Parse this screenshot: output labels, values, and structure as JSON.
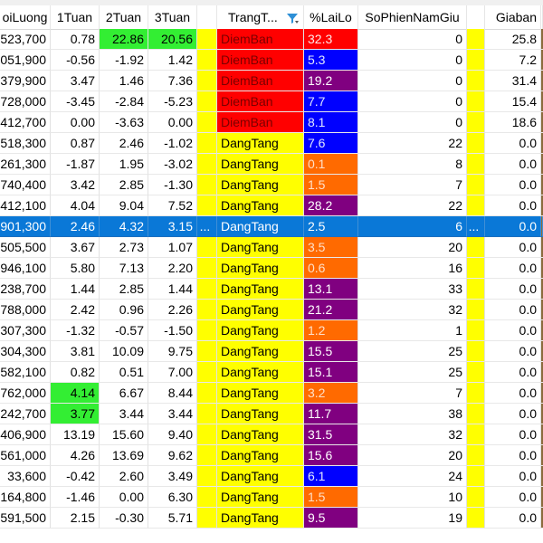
{
  "colors": {
    "green": "#33ee33",
    "yellow": "#ffff00",
    "red": "#ff0000",
    "blue": "#0000ff",
    "orange": "#ff6a00",
    "purple": "#800080",
    "selected": "#0a78d7",
    "brown_edge": "#8b6b3d"
  },
  "columns": [
    {
      "key": "luong",
      "label": "oiLuong"
    },
    {
      "key": "t1",
      "label": "1Tuan"
    },
    {
      "key": "t2",
      "label": "2Tuan"
    },
    {
      "key": "t3",
      "label": "3Tuan"
    },
    {
      "key": "sp1",
      "label": ""
    },
    {
      "key": "trang",
      "label": "TrangT..."
    },
    {
      "key": "lailo",
      "label": "%LaiLo"
    },
    {
      "key": "sophien",
      "label": "SoPhienNamGiu"
    },
    {
      "key": "sp2",
      "label": ""
    },
    {
      "key": "giaban",
      "label": "Giaban"
    }
  ],
  "filter_icon": "filter-sort-icon",
  "selected_row": 9,
  "rows": [
    {
      "luong": "523,700",
      "t1": "0.78",
      "t2": "22.86",
      "t3": "20.56",
      "trang": "DiemBan",
      "lailo": "32.3",
      "sophien": "0",
      "giaban": "25.8",
      "hl": {
        "t2": "green",
        "t3": "green"
      },
      "tc": "red",
      "lc": "red"
    },
    {
      "luong": "051,900",
      "t1": "-0.56",
      "t2": "-1.92",
      "t3": "1.42",
      "trang": "DiemBan",
      "lailo": "5.3",
      "sophien": "0",
      "giaban": "7.2",
      "hl": {},
      "tc": "red",
      "lc": "blue"
    },
    {
      "luong": "379,900",
      "t1": "3.47",
      "t2": "1.46",
      "t3": "7.36",
      "trang": "DiemBan",
      "lailo": "19.2",
      "sophien": "0",
      "giaban": "31.4",
      "hl": {},
      "tc": "red",
      "lc": "purple"
    },
    {
      "luong": "728,000",
      "t1": "-3.45",
      "t2": "-2.84",
      "t3": "-5.23",
      "trang": "DiemBan",
      "lailo": "7.7",
      "sophien": "0",
      "giaban": "15.4",
      "hl": {},
      "tc": "red",
      "lc": "blue"
    },
    {
      "luong": "412,700",
      "t1": "0.00",
      "t2": "-3.63",
      "t3": "0.00",
      "trang": "DiemBan",
      "lailo": "8.1",
      "sophien": "0",
      "giaban": "18.6",
      "hl": {},
      "tc": "red",
      "lc": "blue"
    },
    {
      "luong": "518,300",
      "t1": "0.87",
      "t2": "2.46",
      "t3": "-1.02",
      "trang": "DangTang",
      "lailo": "7.6",
      "sophien": "22",
      "giaban": "0.0",
      "hl": {},
      "tc": "yellow",
      "lc": "blue"
    },
    {
      "luong": "261,300",
      "t1": "-1.87",
      "t2": "1.95",
      "t3": "-3.02",
      "trang": "DangTang",
      "lailo": "0.1",
      "sophien": "8",
      "giaban": "0.0",
      "hl": {},
      "tc": "yellow",
      "lc": "orange"
    },
    {
      "luong": "740,400",
      "t1": "3.42",
      "t2": "2.85",
      "t3": "-1.30",
      "trang": "DangTang",
      "lailo": "1.5",
      "sophien": "7",
      "giaban": "0.0",
      "hl": {},
      "tc": "yellow",
      "lc": "orange"
    },
    {
      "luong": "412,100",
      "t1": "4.04",
      "t2": "9.04",
      "t3": "7.52",
      "trang": "DangTang",
      "lailo": "28.2",
      "sophien": "22",
      "giaban": "0.0",
      "hl": {},
      "tc": "yellow",
      "lc": "purple"
    },
    {
      "luong": "901,300",
      "t1": "2.46",
      "t2": "4.32",
      "t3": "3.15",
      "sp1": "...",
      "trang": "DangTang",
      "lailo": "2.5",
      "sophien": "6",
      "sp2": "...",
      "giaban": "0.0",
      "hl": {},
      "tc": "selected",
      "lc": "selected"
    },
    {
      "luong": "505,500",
      "t1": "3.67",
      "t2": "2.73",
      "t3": "1.07",
      "trang": "DangTang",
      "lailo": "3.5",
      "sophien": "20",
      "giaban": "0.0",
      "hl": {},
      "tc": "yellow",
      "lc": "orange"
    },
    {
      "luong": "946,100",
      "t1": "5.80",
      "t2": "7.13",
      "t3": "2.20",
      "trang": "DangTang",
      "lailo": "0.6",
      "sophien": "16",
      "giaban": "0.0",
      "hl": {},
      "tc": "yellow",
      "lc": "orange"
    },
    {
      "luong": "238,700",
      "t1": "1.44",
      "t2": "2.85",
      "t3": "1.44",
      "trang": "DangTang",
      "lailo": "13.1",
      "sophien": "33",
      "giaban": "0.0",
      "hl": {},
      "tc": "yellow",
      "lc": "purple"
    },
    {
      "luong": "788,000",
      "t1": "2.42",
      "t2": "0.96",
      "t3": "2.26",
      "trang": "DangTang",
      "lailo": "21.2",
      "sophien": "32",
      "giaban": "0.0",
      "hl": {},
      "tc": "yellow",
      "lc": "purple"
    },
    {
      "luong": "307,300",
      "t1": "-1.32",
      "t2": "-0.57",
      "t3": "-1.50",
      "trang": "DangTang",
      "lailo": "1.2",
      "sophien": "1",
      "giaban": "0.0",
      "hl": {},
      "tc": "yellow",
      "lc": "orange"
    },
    {
      "luong": "304,300",
      "t1": "3.81",
      "t2": "10.09",
      "t3": "9.75",
      "trang": "DangTang",
      "lailo": "15.5",
      "sophien": "25",
      "giaban": "0.0",
      "hl": {},
      "tc": "yellow",
      "lc": "purple"
    },
    {
      "luong": "582,100",
      "t1": "0.82",
      "t2": "0.51",
      "t3": "7.00",
      "trang": "DangTang",
      "lailo": "15.1",
      "sophien": "25",
      "giaban": "0.0",
      "hl": {},
      "tc": "yellow",
      "lc": "purple"
    },
    {
      "luong": "762,000",
      "t1": "4.14",
      "t2": "6.67",
      "t3": "8.44",
      "trang": "DangTang",
      "lailo": "3.2",
      "sophien": "7",
      "giaban": "0.0",
      "hl": {
        "t1": "green"
      },
      "tc": "yellow",
      "lc": "orange"
    },
    {
      "luong": "242,700",
      "t1": "3.77",
      "t2": "3.44",
      "t3": "3.44",
      "trang": "DangTang",
      "lailo": "11.7",
      "sophien": "38",
      "giaban": "0.0",
      "hl": {
        "t1": "green"
      },
      "tc": "yellow",
      "lc": "purple"
    },
    {
      "luong": "406,900",
      "t1": "13.19",
      "t2": "15.60",
      "t3": "9.40",
      "trang": "DangTang",
      "lailo": "31.5",
      "sophien": "32",
      "giaban": "0.0",
      "hl": {},
      "tc": "yellow",
      "lc": "purple"
    },
    {
      "luong": "561,000",
      "t1": "4.26",
      "t2": "13.69",
      "t3": "9.62",
      "trang": "DangTang",
      "lailo": "15.6",
      "sophien": "20",
      "giaban": "0.0",
      "hl": {},
      "tc": "yellow",
      "lc": "purple"
    },
    {
      "luong": "33,600",
      "t1": "-0.42",
      "t2": "2.60",
      "t3": "3.49",
      "trang": "DangTang",
      "lailo": "6.1",
      "sophien": "24",
      "giaban": "0.0",
      "hl": {},
      "tc": "yellow",
      "lc": "blue"
    },
    {
      "luong": "164,800",
      "t1": "-1.46",
      "t2": "0.00",
      "t3": "6.30",
      "trang": "DangTang",
      "lailo": "1.5",
      "sophien": "10",
      "giaban": "0.0",
      "hl": {},
      "tc": "yellow",
      "lc": "orange"
    },
    {
      "luong": "591,500",
      "t1": "2.15",
      "t2": "-0.30",
      "t3": "5.71",
      "trang": "DangTang",
      "lailo": "9.5",
      "sophien": "19",
      "giaban": "0.0",
      "hl": {},
      "tc": "yellow",
      "lc": "purple"
    }
  ]
}
